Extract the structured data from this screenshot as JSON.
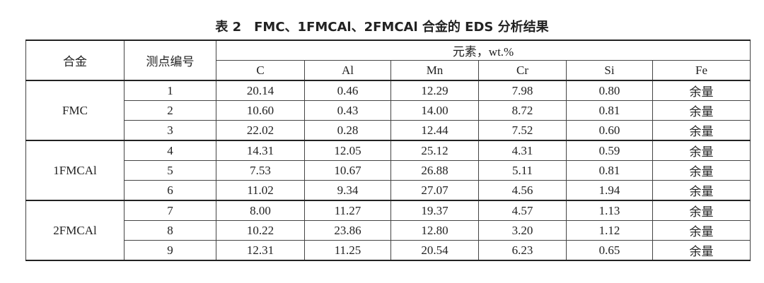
{
  "title": "表 2　FMC、1FMCAl、2FMCAl 合金的 EDS 分析结果",
  "table": {
    "headers": {
      "alloy": "合金",
      "point": "测点编号",
      "elements_label": "元素，wt.%",
      "elements": [
        "C",
        "Al",
        "Mn",
        "Cr",
        "Si",
        "Fe"
      ]
    },
    "groups": [
      {
        "alloy": "FMC",
        "rows": [
          [
            "1",
            "20.14",
            "0.46",
            "12.29",
            "7.98",
            "0.80",
            "余量"
          ],
          [
            "2",
            "10.60",
            "0.43",
            "14.00",
            "8.72",
            "0.81",
            "余量"
          ],
          [
            "3",
            "22.02",
            "0.28",
            "12.44",
            "7.52",
            "0.60",
            "余量"
          ]
        ]
      },
      {
        "alloy": "1FMCAl",
        "rows": [
          [
            "4",
            "14.31",
            "12.05",
            "25.12",
            "4.31",
            "0.59",
            "余量"
          ],
          [
            "5",
            "7.53",
            "10.67",
            "26.88",
            "5.11",
            "0.81",
            "余量"
          ],
          [
            "6",
            "11.02",
            "9.34",
            "27.07",
            "4.56",
            "1.94",
            "余量"
          ]
        ]
      },
      {
        "alloy": "2FMCAl",
        "rows": [
          [
            "7",
            "8.00",
            "11.27",
            "19.37",
            "4.57",
            "1.13",
            "余量"
          ],
          [
            "8",
            "10.22",
            "23.86",
            "12.80",
            "3.20",
            "1.12",
            "余量"
          ],
          [
            "9",
            "12.31",
            "11.25",
            "20.54",
            "6.23",
            "0.65",
            "余量"
          ]
        ]
      }
    ]
  }
}
